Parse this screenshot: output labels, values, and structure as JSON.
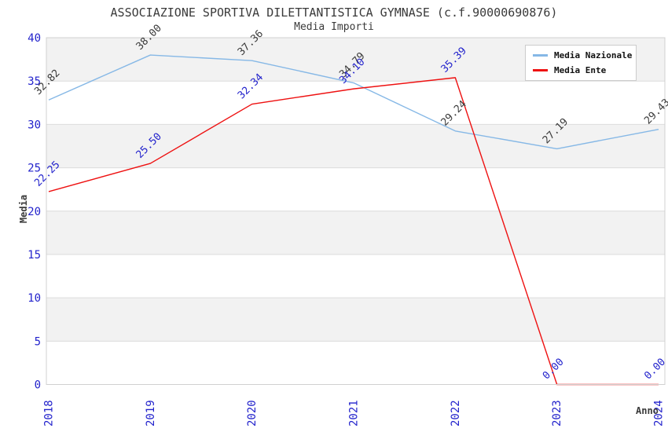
{
  "header": {
    "title": "ASSOCIAZIONE SPORTIVA DILETTANTISTICA GYMNASE (c.f.90000690876)",
    "subtitle": "Media Importi"
  },
  "axes": {
    "x_label": "Anno",
    "y_label": "Media",
    "x_ticks": [
      "2018",
      "2019",
      "2020",
      "2021",
      "2022",
      "2023",
      "2024"
    ],
    "y_ticks": [
      0,
      5,
      10,
      15,
      20,
      25,
      30,
      35,
      40
    ],
    "ylim": [
      0,
      40
    ],
    "tick_color": "#2323cc"
  },
  "legend": {
    "position": "top-right",
    "items": [
      {
        "label": "Media Nazionale",
        "color": "#86b8e6"
      },
      {
        "label": "Media Ente",
        "color": "#ee1111"
      }
    ]
  },
  "chart_data": {
    "type": "line",
    "title": "Media Importi",
    "xlabel": "Anno",
    "ylabel": "Media",
    "x": [
      2018,
      2019,
      2020,
      2021,
      2022,
      2023,
      2024
    ],
    "ylim": [
      0,
      40
    ],
    "grid": "horizontal-bands",
    "series": [
      {
        "name": "Media Nazionale",
        "color": "#86b8e6",
        "label_color": "#3a3a3a",
        "values": [
          32.82,
          38.0,
          37.36,
          34.79,
          29.24,
          27.19,
          29.43
        ],
        "point_labels": [
          "32.82",
          "38.00",
          "37.36",
          "34.79",
          "29.24",
          "27.19",
          "29.43"
        ]
      },
      {
        "name": "Media Ente",
        "color": "#ee1111",
        "label_color": "#2323cc",
        "values": [
          22.25,
          25.5,
          32.34,
          34.1,
          35.39,
          0.0,
          0.0
        ],
        "point_labels": [
          "22.25",
          "25.50",
          "32.34",
          "34.10",
          "35.39",
          "0.00",
          "0.00"
        ]
      }
    ]
  },
  "colors": {
    "band_fill": "#f2f2f2",
    "gridline": "#dcdcdc",
    "plot_border": "#d0d0d0",
    "title_text": "#3a3a3a",
    "tick_text": "#2323cc",
    "background": "#ffffff"
  }
}
